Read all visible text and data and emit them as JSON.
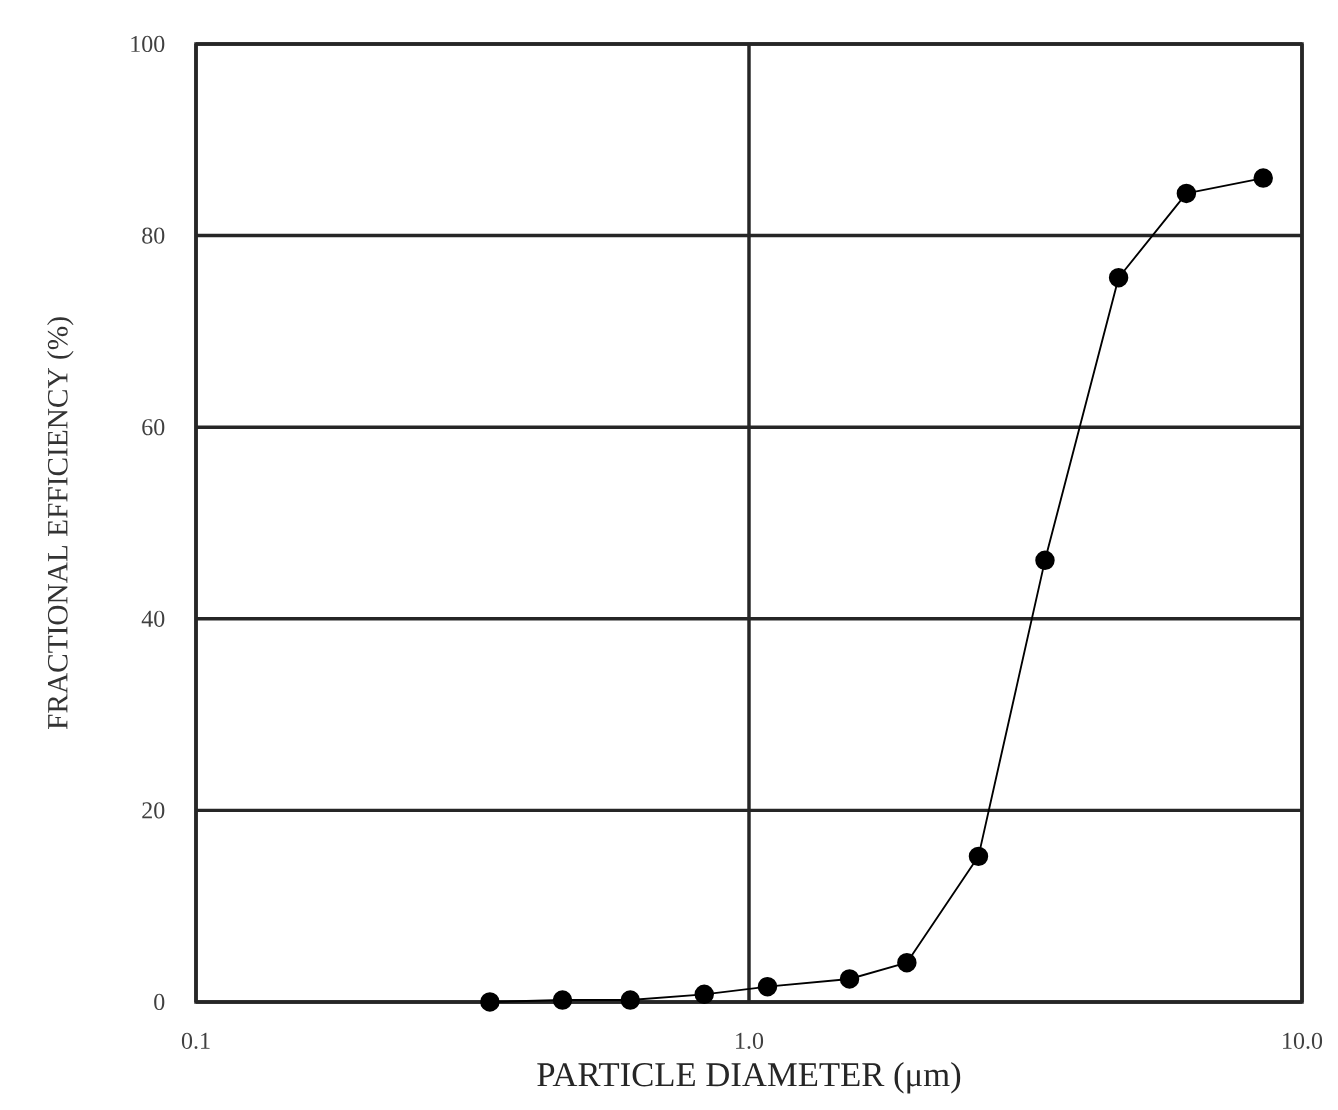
{
  "chart_data": {
    "type": "line",
    "xlabel": "PARTICLE DIAMETER (μm)",
    "ylabel": "FRACTIONAL EFFICIENCY (%)",
    "log": "x",
    "grid": true,
    "marker": "circle",
    "line_style": "solid",
    "xlim": [
      0.1,
      10
    ],
    "ylim": [
      0,
      100
    ],
    "xticks": [
      {
        "value": 0.1,
        "label": "0.1"
      },
      {
        "value": 1,
        "label": "1.0"
      },
      {
        "value": 10,
        "label": "10.0"
      }
    ],
    "yticks": [
      0,
      20,
      40,
      60,
      80,
      100
    ],
    "series": [
      {
        "color": "#000000",
        "x": [
          0.34,
          0.46,
          0.61,
          0.83,
          1.08,
          1.52,
          1.93,
          2.6,
          3.43,
          4.66,
          6.18,
          8.51
        ],
        "values": [
          0,
          0.2,
          0.2,
          0.8,
          1.6,
          2.4,
          4.1,
          15.2,
          46.1,
          75.6,
          84.4,
          86.0
        ]
      }
    ]
  }
}
